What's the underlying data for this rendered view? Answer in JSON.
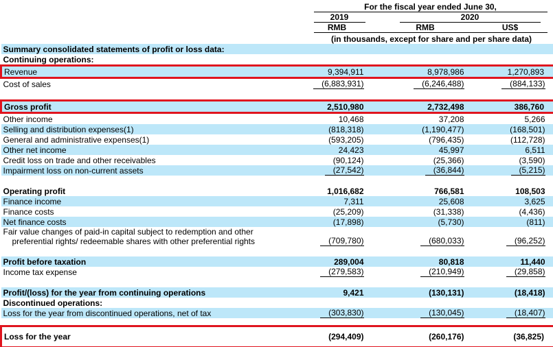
{
  "colors": {
    "highlight": "#BDE7F9",
    "annotation_box": "#E0141E"
  },
  "header": {
    "title": "For the fiscal year ended June 30,",
    "year_left": "2019",
    "year_right": "2020",
    "unit_col1": "RMB",
    "unit_col2": "RMB",
    "unit_col3": "US$",
    "note": "(in thousands, except for share and per share data)"
  },
  "rows": [
    {
      "type": "data",
      "label": "Summary consolidated statements of profit or loss data:",
      "bold": true,
      "highlight": true,
      "values": null
    },
    {
      "type": "data",
      "label": "Continuing operations:",
      "bold": true,
      "values": null
    },
    {
      "type": "data",
      "label": "Revenue",
      "highlight": true,
      "red_box": true,
      "values": [
        "9,394,911",
        "8,978,986",
        "1,270,893"
      ]
    },
    {
      "type": "data",
      "label": "Cost of sales",
      "underline": true,
      "values": [
        "(6,883,931)",
        "(6,246,488)",
        "(884,133)"
      ]
    },
    {
      "type": "spacer"
    },
    {
      "type": "data",
      "label": "Gross profit",
      "bold": true,
      "highlight": true,
      "red_box": true,
      "values": [
        "2,510,980",
        "2,732,498",
        "386,760"
      ]
    },
    {
      "type": "data",
      "label": "Other income",
      "values": [
        "10,468",
        "37,208",
        "5,266"
      ]
    },
    {
      "type": "data",
      "label": "Selling and distribution expenses(1)",
      "highlight": true,
      "values": [
        "(818,318)",
        "(1,190,477)",
        "(168,501)"
      ]
    },
    {
      "type": "data",
      "label": "General and administrative expenses(1)",
      "values": [
        "(593,205)",
        "(796,435)",
        "(112,728)"
      ]
    },
    {
      "type": "data",
      "label": "Other net income",
      "highlight": true,
      "values": [
        "24,423",
        "45,997",
        "6,511"
      ]
    },
    {
      "type": "data",
      "label": "Credit loss on trade and other receivables",
      "values": [
        "(90,124)",
        "(25,366)",
        "(3,590)"
      ]
    },
    {
      "type": "data",
      "label": "Impairment loss on non-current assets",
      "highlight": true,
      "underline": true,
      "values": [
        "(27,542)",
        "(36,844)",
        "(5,215)"
      ]
    },
    {
      "type": "spacer"
    },
    {
      "type": "data",
      "label": "Operating profit",
      "bold": true,
      "values": [
        "1,016,682",
        "766,581",
        "108,503"
      ]
    },
    {
      "type": "data",
      "label": "Finance income",
      "highlight": true,
      "values": [
        "7,311",
        "25,608",
        "3,625"
      ]
    },
    {
      "type": "data",
      "label": "Finance costs",
      "values": [
        "(25,209)",
        "(31,338)",
        "(4,436)"
      ]
    },
    {
      "type": "data",
      "label": "Net finance costs",
      "highlight": true,
      "values": [
        "(17,898)",
        "(5,730)",
        "(811)"
      ]
    },
    {
      "type": "data",
      "label": "Fair value changes of paid-in capital subject to redemption and other",
      "label2": "preferential rights/ redeemable shares with other preferential rights",
      "underline": true,
      "values": [
        "(709,780)",
        "(680,033)",
        "(96,252)"
      ]
    },
    {
      "type": "spacer"
    },
    {
      "type": "data",
      "label": "Profit before taxation",
      "bold": true,
      "highlight": true,
      "values": [
        "289,004",
        "80,818",
        "11,440"
      ]
    },
    {
      "type": "data",
      "label": "Income tax expense",
      "underline": true,
      "values": [
        "(279,583)",
        "(210,949)",
        "(29,858)"
      ]
    },
    {
      "type": "spacer"
    },
    {
      "type": "data",
      "label": "Profit/(loss) for the year from continuing operations",
      "bold": true,
      "highlight": true,
      "values": [
        "9,421",
        "(130,131)",
        "(18,418)"
      ]
    },
    {
      "type": "data",
      "label": "Discontinued operations:",
      "bold": true,
      "values": null
    },
    {
      "type": "data",
      "label": "Loss for the year from discontinued operations, net of tax",
      "highlight": true,
      "underline": true,
      "values": [
        "(303,830)",
        "(130,045)",
        "(18,407)"
      ]
    },
    {
      "type": "spacer",
      "small": true
    },
    {
      "type": "data",
      "label": "Loss for the year",
      "bold": true,
      "red_box": true,
      "tall": true,
      "values": [
        "(294,409)",
        "(260,176)",
        "(36,825)"
      ]
    }
  ]
}
